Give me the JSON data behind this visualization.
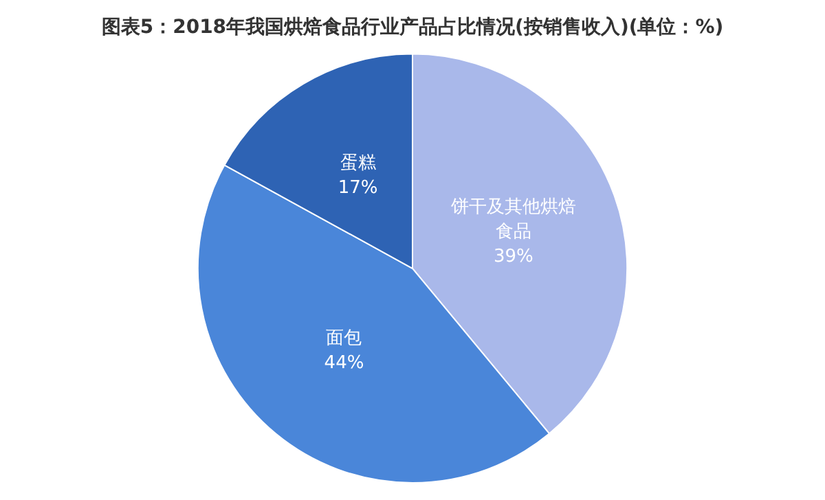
{
  "chart_data": {
    "type": "pie",
    "title": "图表5：2018年我国烘焙食品行业产品占比情况(按销售收入)(单位：%)",
    "categories": [
      "饼干及其他烘焙食品",
      "面包",
      "蛋糕"
    ],
    "values": [
      39,
      44,
      17
    ],
    "colors": [
      "#a9b8ea",
      "#4a86d9",
      "#2e63b4"
    ],
    "value_labels": [
      "39%",
      "44%",
      "17%"
    ],
    "legend": false
  }
}
